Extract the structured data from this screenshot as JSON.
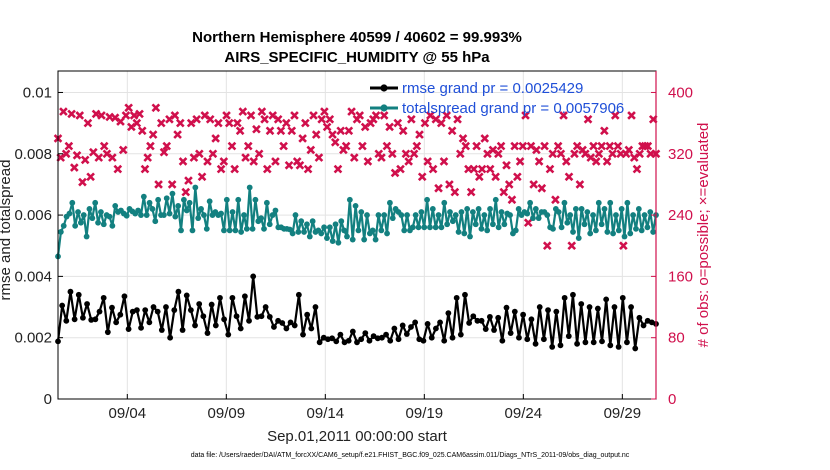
{
  "chart_data": {
    "type": "line",
    "title": "Northern Hemisphere 40599 / 40602 = 99.993%",
    "subtitle": "AIRS_SPECIFIC_HUMIDITY @ 55 hPa",
    "xlabel": "Sep.01,2011 00:00:00 start",
    "ylabel": "rmse and totalspread",
    "y2label": "# of obs: o=possible; ×=evaluated",
    "footnote": "data file: /Users/raeder/DAI/ATM_forcXX/CAM6_setup/f.e21.FHIST_BGC.f09_025.CAM6assim.011/Diags_NTrS_2011-09/obs_diag_output.nc",
    "xlim": [
      0.5,
      30.7
    ],
    "ylim": [
      0,
      0.0107
    ],
    "y2lim": [
      0,
      428
    ],
    "xticks": [
      {
        "pos": 4,
        "label": "09/04"
      },
      {
        "pos": 9,
        "label": "09/09"
      },
      {
        "pos": 14,
        "label": "09/14"
      },
      {
        "pos": 19,
        "label": "09/19"
      },
      {
        "pos": 24,
        "label": "09/24"
      },
      {
        "pos": 29,
        "label": "09/29"
      }
    ],
    "yticks": [
      {
        "value": 0,
        "label": "0"
      },
      {
        "value": 0.002,
        "label": "0.002"
      },
      {
        "value": 0.004,
        "label": "0.004"
      },
      {
        "value": 0.006,
        "label": "0.006"
      },
      {
        "value": 0.008,
        "label": "0.008"
      },
      {
        "value": 0.01,
        "label": "0.01"
      }
    ],
    "y2ticks": [
      {
        "value": 0,
        "label": "0"
      },
      {
        "value": 80,
        "label": "80"
      },
      {
        "value": 160,
        "label": "160"
      },
      {
        "value": 240,
        "label": "240"
      },
      {
        "value": 320,
        "label": "320"
      },
      {
        "value": 400,
        "label": "400"
      }
    ],
    "legend_position": "top-right",
    "colors": {
      "rmse": "#000000",
      "totalspread": "#138080",
      "obs": "#d0104c",
      "legend_text": "#1f4fd8"
    },
    "series": [
      {
        "name": "rmse",
        "label": "rmse grand pr = 0.0025429",
        "values": [
          0.00188,
          0.00305,
          0.00255,
          0.0035,
          0.0026,
          0.0034,
          0.00265,
          0.0031,
          0.00258,
          0.0026,
          0.00285,
          0.0033,
          0.00218,
          0.00298,
          0.0025,
          0.00275,
          0.00335,
          0.00228,
          0.00285,
          0.0029,
          0.00232,
          0.0029,
          0.0025,
          0.003,
          0.00285,
          0.00225,
          0.003,
          0.002,
          0.0029,
          0.0035,
          0.00225,
          0.00338,
          0.0029,
          0.0024,
          0.0031,
          0.0027,
          0.00215,
          0.00308,
          0.0024,
          0.0033,
          0.0026,
          0.0021,
          0.0033,
          0.0027,
          0.0023,
          0.00335,
          0.00255,
          0.004,
          0.00268,
          0.0027,
          0.003,
          0.00268,
          0.00235,
          0.00255,
          0.00248,
          0.0023,
          0.0025,
          0.0024,
          0.0034,
          0.0021,
          0.00275,
          0.0023,
          0.003,
          0.00185,
          0.002,
          0.00195,
          0.00198,
          0.00188,
          0.0021,
          0.00185,
          0.0019,
          0.0022,
          0.00185,
          0.00195,
          0.00215,
          0.0019,
          0.00205,
          0.00198,
          0.002,
          0.0021,
          0.0019,
          0.0023,
          0.00195,
          0.0024,
          0.00212,
          0.00235,
          0.0025,
          0.00195,
          0.0019,
          0.00245,
          0.002,
          0.0023,
          0.0025,
          0.0019,
          0.0028,
          0.002,
          0.0033,
          0.0021,
          0.0034,
          0.00248,
          0.0027,
          0.00255,
          0.00255,
          0.00228,
          0.00268,
          0.00225,
          0.00265,
          0.0019,
          0.00298,
          0.00215,
          0.00285,
          0.002,
          0.00275,
          0.00195,
          0.0026,
          0.0018,
          0.003,
          0.00195,
          0.0029,
          0.0017,
          0.00285,
          0.00175,
          0.0033,
          0.00205,
          0.0034,
          0.0018,
          0.0031,
          0.00185,
          0.003,
          0.00185,
          0.00295,
          0.00188,
          0.00325,
          0.00175,
          0.003,
          0.0017,
          0.0033,
          0.00185,
          0.003,
          0.00165,
          0.00265,
          0.0024,
          0.00255,
          0.0025,
          0.00245
        ]
      },
      {
        "name": "totalspread",
        "label": "totalspread grand pr = 0.0057906",
        "values": [
          0.00465,
          0.00545,
          0.00565,
          0.00595,
          0.00605,
          0.0064,
          0.00565,
          0.0061,
          0.00575,
          0.006,
          0.0053,
          0.0062,
          0.0059,
          0.0064,
          0.00575,
          0.0061,
          0.0057,
          0.006,
          0.00595,
          0.00565,
          0.0063,
          0.0061,
          0.00615,
          0.00605,
          0.00598,
          0.0062,
          0.00612,
          0.00605,
          0.00615,
          0.006,
          0.0066,
          0.006,
          0.0064,
          0.0062,
          0.0058,
          0.0065,
          0.006,
          0.006,
          0.00655,
          0.00605,
          0.0067,
          0.00595,
          0.0063,
          0.0055,
          0.0065,
          0.00615,
          0.0064,
          0.0055,
          0.0069,
          0.0059,
          0.0062,
          0.006,
          0.00555,
          0.00645,
          0.006,
          0.0061,
          0.006,
          0.00605,
          0.0055,
          0.0065,
          0.0055,
          0.0061,
          0.0055,
          0.0065,
          0.00545,
          0.006,
          0.00555,
          0.0069,
          0.00555,
          0.0065,
          0.0058,
          0.0059,
          0.00555,
          0.0064,
          0.0057,
          0.006,
          0.00615,
          0.0056,
          0.0056,
          0.00555,
          0.00555,
          0.00553,
          0.0054,
          0.006,
          0.00545,
          0.0058,
          0.00545,
          0.0057,
          0.0053,
          0.0058,
          0.00545,
          0.0055,
          0.0054,
          0.0056,
          0.00525,
          0.0056,
          0.00515,
          0.0057,
          0.0051,
          0.0058,
          0.0055,
          0.0053,
          0.0065,
          0.0052,
          0.0063,
          0.0055,
          0.0061,
          0.0052,
          0.006,
          0.0054,
          0.0055,
          0.0052,
          0.006,
          0.0055,
          0.006,
          0.0054,
          0.0064,
          0.0059,
          0.0062,
          0.0061,
          0.006,
          0.0055,
          0.006,
          0.0055,
          0.0056,
          0.006,
          0.0056,
          0.0061,
          0.0056,
          0.0065,
          0.0056,
          0.0062,
          0.0056,
          0.006,
          0.0056,
          0.0064,
          0.0057,
          0.0061,
          0.0058,
          0.006,
          0.00545,
          0.0061,
          0.0054,
          0.0062,
          0.0053,
          0.0061,
          0.0057,
          0.0062,
          0.00555,
          0.006,
          0.0055,
          0.0062,
          0.0057,
          0.0065,
          0.0056,
          0.0061,
          0.0057,
          0.00605,
          0.006,
          0.0054,
          0.0055,
          0.0062,
          0.006,
          0.0061,
          0.00605,
          0.0064,
          0.0059,
          0.0062,
          0.0059,
          0.0061,
          0.0061,
          0.006,
          0.0056,
          0.00555,
          0.0062,
          0.0061,
          0.0056,
          0.0064,
          0.00575,
          0.006,
          0.00545,
          0.0062,
          0.00525,
          0.0062,
          0.0057,
          0.0061,
          0.0054,
          0.006,
          0.0055,
          0.0064,
          0.0057,
          0.0062,
          0.00545,
          0.0064,
          0.0054,
          0.006,
          0.0055,
          0.0062,
          0.0053,
          0.0064,
          0.0054,
          0.006,
          0.00555,
          0.0062,
          0.0055,
          0.006,
          0.0056,
          0.0061,
          0.00545,
          0.006
        ]
      },
      {
        "name": "obs_count",
        "label": "# of obs",
        "values": [
          340,
          315,
          375,
          320,
          330,
          372,
          302,
          318,
          370,
          283,
          312,
          360,
          290,
          322,
          372,
          315,
          370,
          330,
          320,
          368,
          315,
          367,
          300,
          362,
          325,
          370,
          380,
          355,
          370,
          360,
          372,
          350,
          300,
          315,
          330,
          345,
          380,
          280,
          360,
          322,
          330,
          365,
          280,
          370,
          345,
          360,
          310,
          270,
          285,
          360,
          315,
          365,
          320,
          290,
          370,
          310,
          365,
          320,
          340,
          360,
          300,
          310,
          370,
          360,
          330,
          300,
          360,
          350,
          375,
          315,
          330,
          370,
          310,
          352,
          320,
          375,
          365,
          300,
          350,
          370,
          310,
          365,
          350,
          330,
          360,
          305,
          350,
          370,
          310,
          305,
          340,
          360,
          300,
          325,
          370,
          345,
          315,
          365,
          375,
          355,
          365,
          345,
          335,
          300,
          350,
          325,
          330,
          350,
          375,
          315,
          365,
          370,
          330,
          355,
          310,
          360,
          365,
          370,
          320,
          315,
          370,
          330,
          355,
          320,
          295,
          360,
          300,
          350,
          320,
          310,
          365,
          320,
          330,
          345,
          290,
          360,
          310,
          370,
          300,
          365,
          275,
          360,
          310,
          370,
          280,
          350,
          270,
          365,
          320,
          340,
          330,
          300,
          270,
          300,
          330,
          290,
          300,
          340,
          320,
          300,
          325,
          290,
          320,
          330,
          270,
          305,
          280,
          260,
          330,
          290,
          310,
          330,
          370,
          230,
          330,
          280,
          325,
          310,
          275,
          330,
          200,
          300,
          320,
          260,
          330,
          320,
          370,
          310,
          290,
          200,
          320,
          330,
          280,
          325,
          320,
          365,
          315,
          330,
          310,
          320,
          330,
          350,
          310,
          330,
          320,
          370,
          330,
          320,
          200,
          320,
          325,
          370,
          315,
          300,
          320,
          330,
          330,
          330,
          320,
          365,
          320
        ]
      }
    ]
  }
}
